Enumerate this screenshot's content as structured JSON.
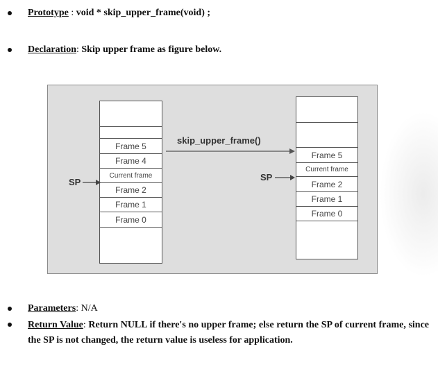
{
  "prototype": {
    "label": "Prototype",
    "sep": " : ",
    "signature": "void * skip_upper_frame(void) ;"
  },
  "declaration": {
    "label": "Declaration",
    "sep": ": ",
    "text": "Skip upper frame as figure below."
  },
  "figure": {
    "function_label": "skip_upper_frame()",
    "sp_label": "SP",
    "sp_label_right": "SP",
    "left_frames": [
      "Frame 5",
      "Frame 4",
      "Current frame",
      "Frame 2",
      "Frame 1",
      "Frame 0"
    ],
    "right_frames": [
      "Frame 5",
      "Current frame",
      "Frame 2",
      "Frame 1",
      "Frame 0"
    ]
  },
  "parameters": {
    "label": "Parameters",
    "sep": ": ",
    "text": "N/A"
  },
  "return_value": {
    "label": "Return Value",
    "sep": ": ",
    "text": "Return NULL if there's no upper frame; else return the SP of current frame, since the SP is not changed, the return value is useless for application."
  }
}
